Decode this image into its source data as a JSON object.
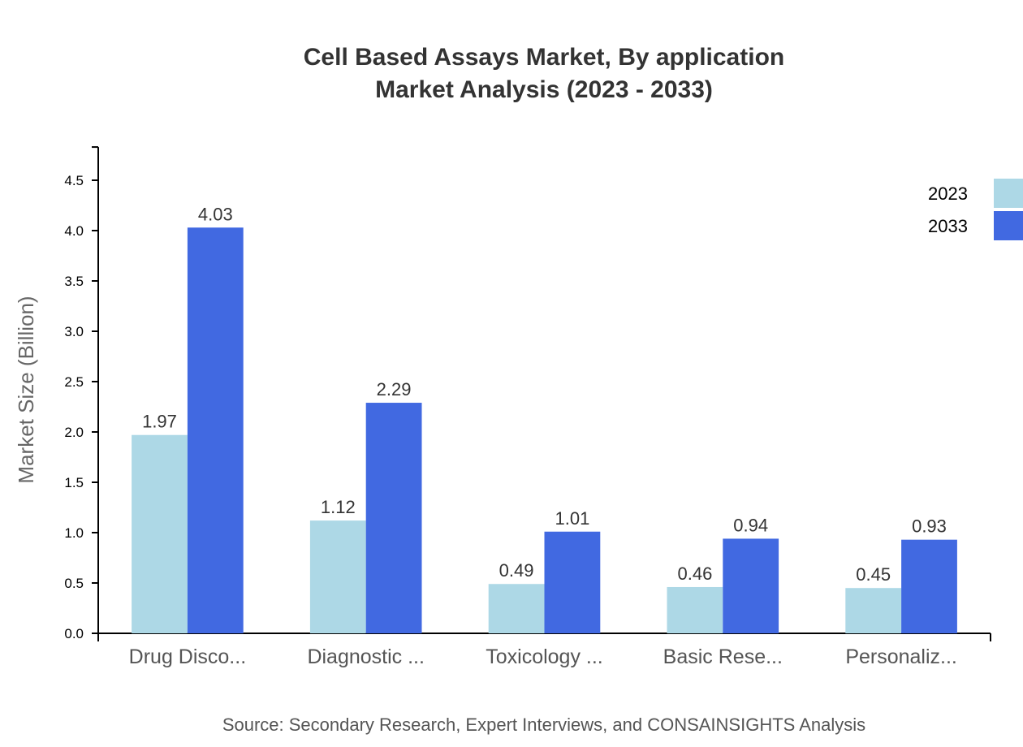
{
  "chart_data": {
    "type": "bar",
    "title": "Cell Based Assays Market, By application",
    "subtitle": "Market Analysis (2023 - 2033)",
    "xlabel": "",
    "ylabel": "Market Size (Billion)",
    "ylim": [
      0,
      4.83
    ],
    "yticks": [
      "0.0",
      "0.5",
      "1.0",
      "1.5",
      "2.0",
      "2.5",
      "3.0",
      "3.5",
      "4.0",
      "4.5"
    ],
    "categories": [
      "Drug Disco...",
      "Diagnostic ...",
      "Toxicology ...",
      "Basic Rese...",
      "Personaliz..."
    ],
    "series": [
      {
        "name": "2023",
        "color": "#add8e6",
        "values": [
          1.97,
          1.12,
          0.49,
          0.46,
          0.45
        ]
      },
      {
        "name": "2033",
        "color": "#4169e1",
        "values": [
          4.03,
          2.29,
          1.01,
          0.94,
          0.93
        ]
      }
    ],
    "legend_position": "top-right",
    "grid": false,
    "source": "Source: Secondary Research, Expert Interviews, and CONSAINSIGHTS Analysis"
  }
}
